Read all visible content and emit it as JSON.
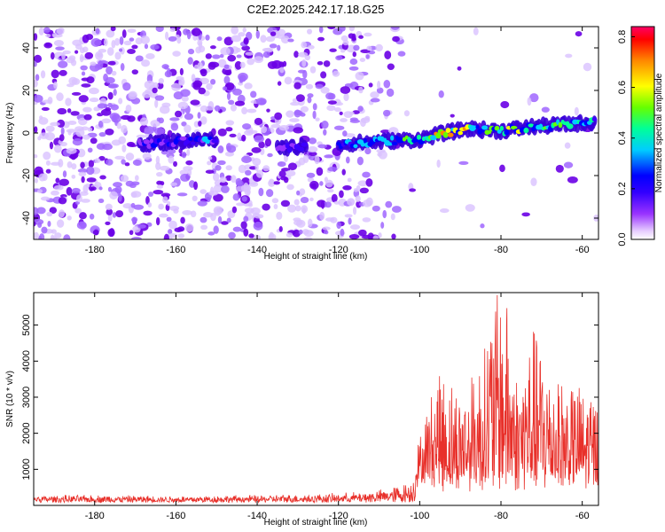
{
  "title": "C2E2.2025.242.17.18.G25",
  "chart_data": [
    {
      "type": "heatmap",
      "xlabel": "Height of straight line (km)",
      "ylabel": "Frequency (Hz)",
      "xlim": [
        -195,
        -56
      ],
      "ylim": [
        -50,
        50
      ],
      "xticks": [
        -180,
        -160,
        -140,
        -120,
        -100,
        -80,
        -60
      ],
      "yticks": [
        -40,
        -20,
        0,
        20,
        40
      ],
      "colorbar": {
        "label": "Normalized spectral amplitude",
        "range": [
          0,
          0.84
        ],
        "ticks": [
          0.0,
          0.2,
          0.4,
          0.6,
          0.8
        ],
        "tick_labels": [
          "0.0",
          "0.2",
          "0.4",
          "0.6",
          "0.8"
        ],
        "colors": [
          "#ffffff",
          "#cc99ff",
          "#6600ee",
          "#0000ff",
          "#00ccff",
          "#00ff66",
          "#ffff00",
          "#ff6600",
          "#ff0000",
          "#ff0066"
        ]
      },
      "signal_track": [
        {
          "x": -168,
          "y": -5,
          "amp": 0.25
        },
        {
          "x": -160,
          "y": -4,
          "amp": 0.28
        },
        {
          "x": -152,
          "y": -3,
          "amp": 0.3
        },
        {
          "x": -133,
          "y": -7,
          "amp": 0.2
        },
        {
          "x": -118,
          "y": -5,
          "amp": 0.3
        },
        {
          "x": -110,
          "y": -4,
          "amp": 0.4
        },
        {
          "x": -100,
          "y": -3,
          "amp": 0.5
        },
        {
          "x": -94,
          "y": 0,
          "amp": 0.7
        },
        {
          "x": -88,
          "y": 2,
          "amp": 0.6
        },
        {
          "x": -80,
          "y": 1,
          "amp": 0.55
        },
        {
          "x": -72,
          "y": 3,
          "amp": 0.5
        },
        {
          "x": -64,
          "y": 4,
          "amp": 0.45
        },
        {
          "x": -58,
          "y": 5,
          "amp": 0.4
        }
      ]
    },
    {
      "type": "line",
      "xlabel": "Height of straight line (km)",
      "ylabel": "SNR (10 * v/v)",
      "xlim": [
        -195,
        -56
      ],
      "ylim": [
        0,
        5900
      ],
      "xticks": [
        -180,
        -160,
        -140,
        -120,
        -100,
        -80,
        -60
      ],
      "yticks": [
        1000,
        2000,
        3000,
        4000,
        5000
      ],
      "color": "#e8302a",
      "envelope": [
        {
          "x": -195,
          "y": 300
        },
        {
          "x": -180,
          "y": 300
        },
        {
          "x": -160,
          "y": 280
        },
        {
          "x": -140,
          "y": 300
        },
        {
          "x": -120,
          "y": 350
        },
        {
          "x": -110,
          "y": 450
        },
        {
          "x": -102,
          "y": 700
        },
        {
          "x": -98,
          "y": 2500
        },
        {
          "x": -95,
          "y": 3600
        },
        {
          "x": -90,
          "y": 2900
        },
        {
          "x": -85,
          "y": 3900
        },
        {
          "x": -82,
          "y": 5400
        },
        {
          "x": -79,
          "y": 5900
        },
        {
          "x": -76,
          "y": 3300
        },
        {
          "x": -72,
          "y": 4700
        },
        {
          "x": -68,
          "y": 3700
        },
        {
          "x": -64,
          "y": 3200
        },
        {
          "x": -60,
          "y": 3000
        },
        {
          "x": -56,
          "y": 2800
        }
      ]
    }
  ]
}
